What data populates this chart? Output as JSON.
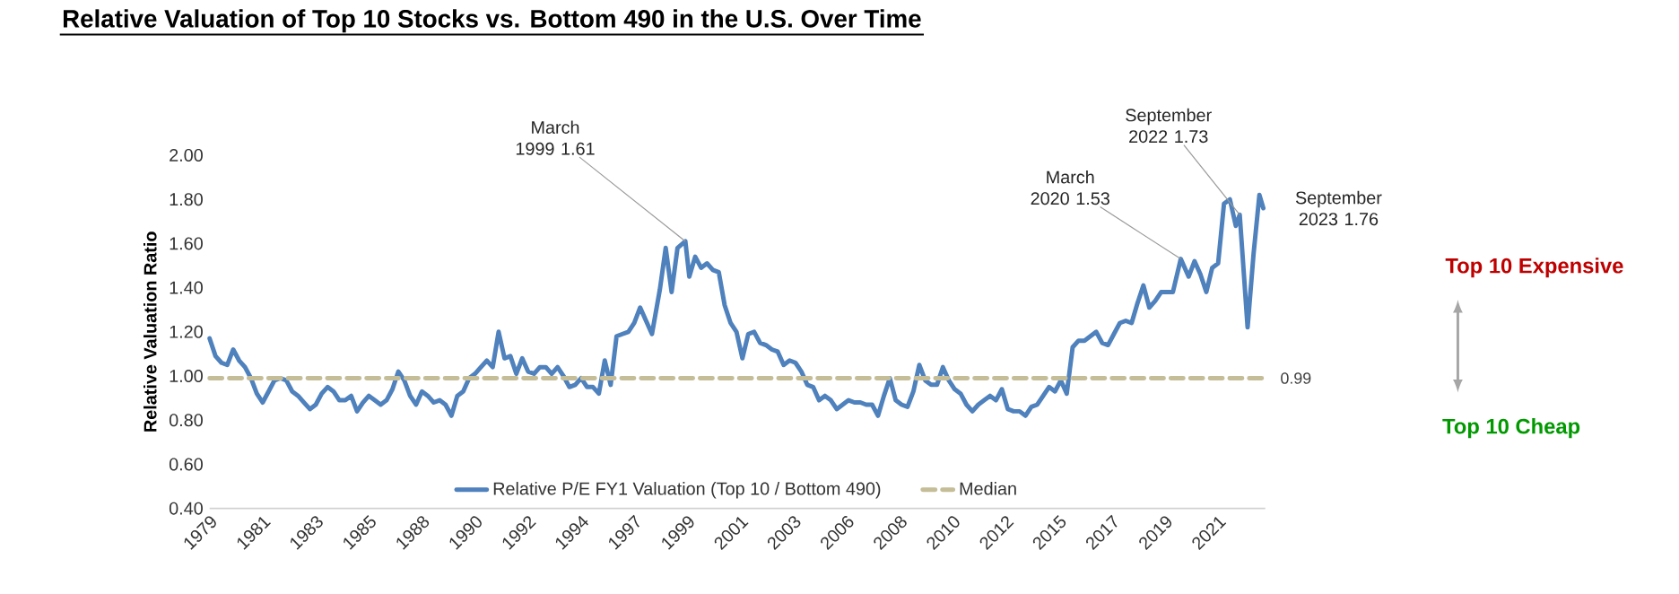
{
  "chart_data": {
    "type": "line",
    "title": "Relative Valuation of Top 10 Stocks vs. Bottom 490 in the U.S. Over Time",
    "ylabel": "Relative Valuation Ratio",
    "x": [
      "1979-01",
      "1979-04",
      "1979-07",
      "1979-10",
      "1980-01",
      "1980-04",
      "1980-07",
      "1980-10",
      "1981-01",
      "1981-04",
      "1981-07",
      "1981-10",
      "1982-01",
      "1982-04",
      "1982-07",
      "1982-10",
      "1983-01",
      "1983-04",
      "1983-07",
      "1983-10",
      "1984-01",
      "1984-04",
      "1984-07",
      "1984-10",
      "1985-01",
      "1985-04",
      "1985-07",
      "1985-10",
      "1986-01",
      "1986-04",
      "1986-07",
      "1986-10",
      "1987-01",
      "1987-04",
      "1987-07",
      "1987-10",
      "1988-01",
      "1988-04",
      "1988-07",
      "1988-10",
      "1989-01",
      "1989-04",
      "1989-07",
      "1989-10",
      "1990-01",
      "1990-04",
      "1990-07",
      "1990-10",
      "1991-01",
      "1991-04",
      "1991-07",
      "1991-10",
      "1992-01",
      "1992-04",
      "1992-07",
      "1992-10",
      "1993-01",
      "1993-04",
      "1993-07",
      "1993-10",
      "1994-01",
      "1994-04",
      "1994-07",
      "1994-10",
      "1995-01",
      "1995-04",
      "1995-07",
      "1995-10",
      "1996-01",
      "1996-04",
      "1996-07",
      "1996-10",
      "1997-01",
      "1997-04",
      "1997-07",
      "1997-10",
      "1998-02",
      "1998-05",
      "1998-08",
      "1998-11",
      "1999-03",
      "1999-05",
      "1999-08",
      "1999-11",
      "2000-02",
      "2000-05",
      "2000-08",
      "2000-11",
      "2001-02",
      "2001-05",
      "2001-08",
      "2001-11",
      "2002-02",
      "2002-05",
      "2002-08",
      "2002-11",
      "2003-02",
      "2003-05",
      "2003-08",
      "2003-11",
      "2004-02",
      "2004-05",
      "2004-08",
      "2004-11",
      "2005-02",
      "2005-05",
      "2005-08",
      "2005-11",
      "2006-02",
      "2006-05",
      "2006-08",
      "2006-11",
      "2007-02",
      "2007-05",
      "2007-08",
      "2007-11",
      "2008-02",
      "2008-05",
      "2008-08",
      "2008-11",
      "2009-02",
      "2009-05",
      "2009-08",
      "2009-11",
      "2010-02",
      "2010-05",
      "2010-08",
      "2010-11",
      "2011-02",
      "2011-05",
      "2011-08",
      "2011-11",
      "2012-02",
      "2012-05",
      "2012-08",
      "2012-11",
      "2013-02",
      "2013-05",
      "2013-08",
      "2013-11",
      "2014-02",
      "2014-05",
      "2014-08",
      "2014-11",
      "2015-02",
      "2015-05",
      "2015-08",
      "2015-11",
      "2016-02",
      "2016-05",
      "2016-08",
      "2016-11",
      "2017-02",
      "2017-05",
      "2017-08",
      "2017-11",
      "2018-02",
      "2018-05",
      "2018-08",
      "2018-11",
      "2019-02",
      "2019-05",
      "2019-11",
      "2020-03",
      "2020-07",
      "2020-10",
      "2021-01",
      "2021-04",
      "2021-07",
      "2021-10",
      "2022-01",
      "2022-04",
      "2022-07",
      "2022-09",
      "2023-01",
      "2023-04",
      "2023-07",
      "2023-09"
    ],
    "series": [
      {
        "name": "Relative P/E FY1 Valuation (Top 10 / Bottom 490)",
        "color": "#4f81bd",
        "values": [
          1.17,
          1.09,
          1.06,
          1.05,
          1.12,
          1.07,
          1.04,
          0.99,
          0.92,
          0.88,
          0.93,
          0.98,
          0.99,
          0.98,
          0.93,
          0.91,
          0.88,
          0.85,
          0.87,
          0.92,
          0.95,
          0.93,
          0.89,
          0.89,
          0.91,
          0.84,
          0.88,
          0.91,
          0.89,
          0.87,
          0.89,
          0.94,
          1.02,
          0.98,
          0.91,
          0.87,
          0.93,
          0.91,
          0.88,
          0.89,
          0.87,
          0.82,
          0.91,
          0.93,
          0.99,
          1.01,
          1.04,
          1.07,
          1.04,
          1.2,
          1.08,
          1.09,
          1.01,
          1.08,
          1.02,
          1.01,
          1.04,
          1.04,
          1.01,
          1.04,
          1.0,
          0.95,
          0.96,
          0.99,
          0.95,
          0.95,
          0.92,
          1.07,
          0.96,
          1.18,
          1.19,
          1.2,
          1.24,
          1.31,
          1.25,
          1.19,
          1.39,
          1.58,
          1.38,
          1.58,
          1.61,
          1.45,
          1.54,
          1.49,
          1.51,
          1.48,
          1.47,
          1.32,
          1.24,
          1.2,
          1.08,
          1.19,
          1.2,
          1.15,
          1.14,
          1.12,
          1.11,
          1.05,
          1.07,
          1.06,
          1.02,
          0.96,
          0.95,
          0.89,
          0.91,
          0.89,
          0.85,
          0.87,
          0.89,
          0.88,
          0.88,
          0.87,
          0.87,
          0.82,
          0.91,
          0.99,
          0.89,
          0.87,
          0.86,
          0.93,
          1.05,
          0.98,
          0.96,
          0.96,
          1.04,
          0.98,
          0.94,
          0.92,
          0.87,
          0.84,
          0.87,
          0.89,
          0.91,
          0.89,
          0.94,
          0.85,
          0.84,
          0.84,
          0.82,
          0.86,
          0.87,
          0.91,
          0.95,
          0.93,
          0.98,
          0.92,
          1.13,
          1.16,
          1.16,
          1.18,
          1.2,
          1.15,
          1.14,
          1.19,
          1.24,
          1.25,
          1.24,
          1.33,
          1.41,
          1.31,
          1.34,
          1.38,
          1.38,
          1.53,
          1.45,
          1.52,
          1.46,
          1.38,
          1.49,
          1.51,
          1.78,
          1.8,
          1.68,
          1.73,
          1.22,
          1.55,
          1.82,
          1.76
        ]
      },
      {
        "name": "Median",
        "color": "#c4bd97",
        "line_style": "dashed",
        "x": [
          "1979-01",
          "2023-09"
        ],
        "values": [
          0.99,
          0.99
        ],
        "value_labels": [
          null,
          "0.99"
        ]
      }
    ],
    "xlim": [
      "1979-01",
      "2023-10"
    ],
    "ylim": [
      0.4,
      2.0
    ],
    "xticks": [
      {
        "value": "1979-01",
        "label": "1979"
      },
      {
        "value": "1981-04",
        "label": "1981"
      },
      {
        "value": "1983-07",
        "label": "1983"
      },
      {
        "value": "1985-10",
        "label": "1985"
      },
      {
        "value": "1988-01",
        "label": "1988"
      },
      {
        "value": "1990-04",
        "label": "1990"
      },
      {
        "value": "1992-07",
        "label": "1992"
      },
      {
        "value": "1994-10",
        "label": "1994"
      },
      {
        "value": "1997-01",
        "label": "1997"
      },
      {
        "value": "1999-04",
        "label": "1999"
      },
      {
        "value": "2001-07",
        "label": "2001"
      },
      {
        "value": "2003-10",
        "label": "2003"
      },
      {
        "value": "2006-01",
        "label": "2006"
      },
      {
        "value": "2008-04",
        "label": "2008"
      },
      {
        "value": "2010-07",
        "label": "2010"
      },
      {
        "value": "2012-10",
        "label": "2012"
      },
      {
        "value": "2015-01",
        "label": "2015"
      },
      {
        "value": "2017-04",
        "label": "2017"
      },
      {
        "value": "2019-07",
        "label": "2019"
      },
      {
        "value": "2021-10",
        "label": "2021"
      }
    ],
    "yticks": [
      {
        "value": 0.4,
        "label": "0.40"
      },
      {
        "value": 0.6,
        "label": "0.60"
      },
      {
        "value": 0.8,
        "label": "0.80"
      },
      {
        "value": 1.0,
        "label": "1.00"
      },
      {
        "value": 1.2,
        "label": "1.20"
      },
      {
        "value": 1.4,
        "label": "1.40"
      },
      {
        "value": 1.6,
        "label": "1.60"
      },
      {
        "value": 1.8,
        "label": "1.80"
      },
      {
        "value": 2.0,
        "label": "2.00"
      }
    ],
    "legend": "bottom",
    "annotations": [
      {
        "text": "March 1999 1.61",
        "x": "1999-03",
        "y": 1.61
      },
      {
        "text": "March 2020 1.53",
        "x": "2020-03",
        "y": 1.53
      },
      {
        "text": "September 2022 1.73",
        "x": "2022-09",
        "y": 1.73
      },
      {
        "text": "September 2023 1.76",
        "x": "2023-09",
        "y": 1.76
      },
      "Top 10 Expensive",
      "Top 10 Cheap"
    ]
  }
}
